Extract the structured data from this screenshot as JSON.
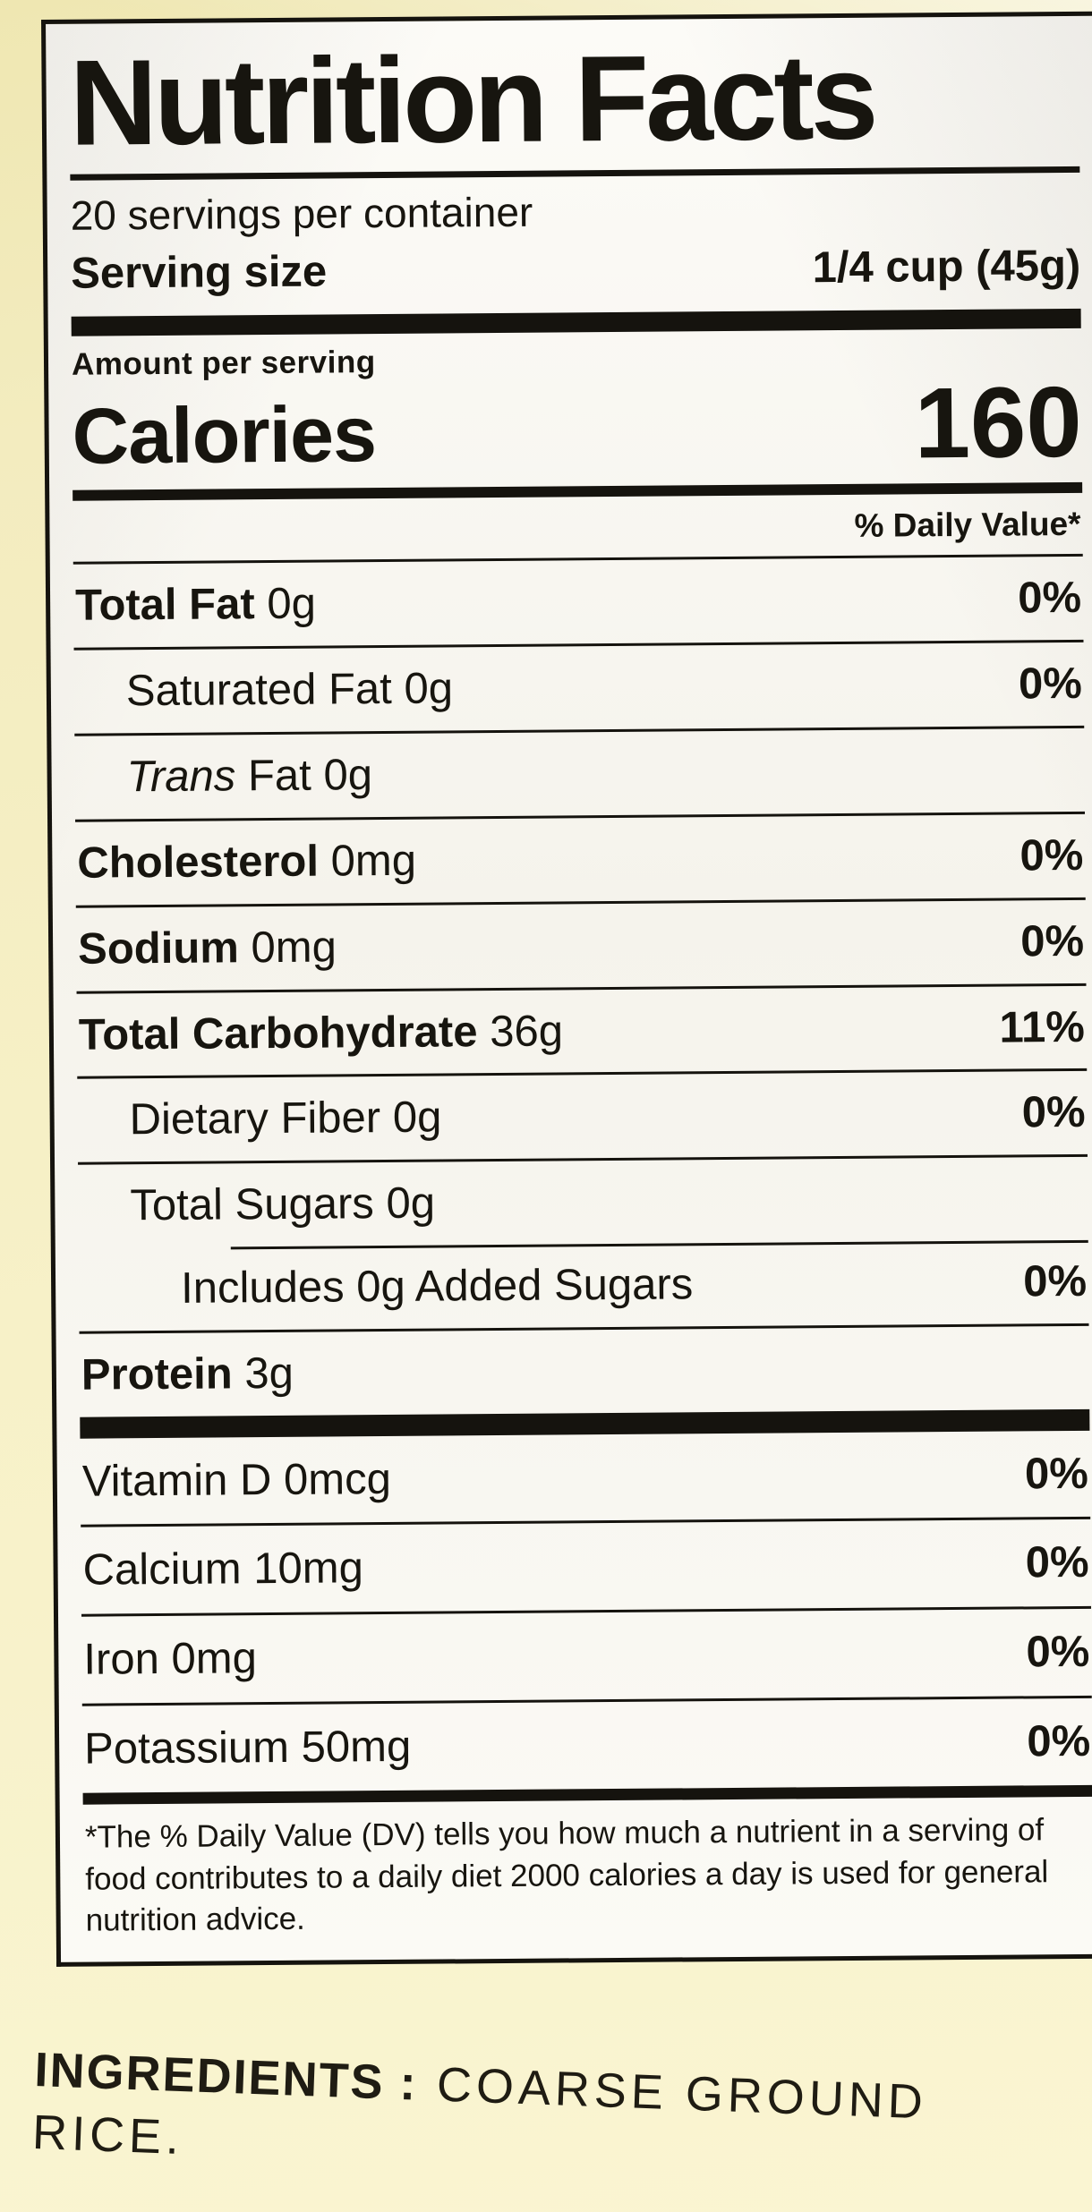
{
  "colors": {
    "package_background_top": "#efe7b2",
    "package_background_bottom": "#faf5d2",
    "label_paper": "#fbfaf6",
    "ink": "#15130e"
  },
  "label": {
    "title": "Nutrition Facts",
    "servings_per_container": "20 servings per container",
    "serving_size": {
      "label": "Serving size",
      "value": "1/4 cup (45g)"
    },
    "amount_per_serving": "Amount per serving",
    "calories": {
      "label": "Calories",
      "value": "160"
    },
    "daily_value_header": "% Daily Value*",
    "nutrients": [
      {
        "name": "Total Fat",
        "amount": "0g",
        "dv": "0%"
      },
      {
        "name": "Saturated Fat",
        "amount": "0g",
        "dv": "0%"
      },
      {
        "name_italic": "Trans",
        "name": "Fat",
        "amount": "0g",
        "dv": ""
      },
      {
        "name": "Cholesterol",
        "amount": "0mg",
        "dv": "0%"
      },
      {
        "name": "Sodium",
        "amount": "0mg",
        "dv": "0%"
      },
      {
        "name": "Total Carbohydrate",
        "amount": "36g",
        "dv": "11%"
      },
      {
        "name": "Dietary Fiber",
        "amount": "0g",
        "dv": "0%"
      },
      {
        "name": "Total Sugars",
        "amount": "0g",
        "dv": ""
      },
      {
        "name": "Includes 0g Added Sugars",
        "amount": "",
        "dv": "0%"
      },
      {
        "name": "Protein",
        "amount": "3g",
        "dv": ""
      }
    ],
    "micronutrients": [
      {
        "name": "Vitamin D",
        "amount": "0mcg",
        "dv": "0%"
      },
      {
        "name": "Calcium",
        "amount": "10mg",
        "dv": "0%"
      },
      {
        "name": "Iron",
        "amount": "0mg",
        "dv": "0%"
      },
      {
        "name": "Potassium",
        "amount": "50mg",
        "dv": "0%"
      }
    ],
    "footnote": "*The % Daily Value (DV) tells you how much a nutrient in a serving of food contributes to a daily diet 2000 calories a day is used for general nutrition advice."
  },
  "ingredients": {
    "label": "INGREDIENTS :",
    "value": "COARSE GROUND RICE."
  }
}
